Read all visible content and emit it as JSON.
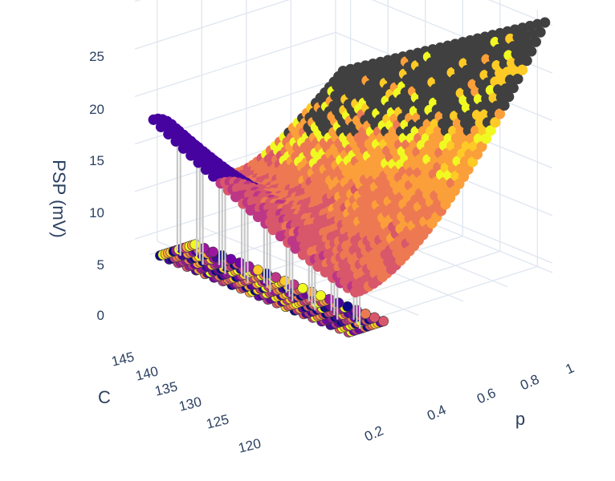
{
  "chart_data": {
    "type": "scatter3d",
    "title": "",
    "axes": {
      "x": {
        "label": "p",
        "range": [
          0.1,
          1.0
        ],
        "ticks": [
          "0.2",
          "0.4",
          "0.6",
          "0.8",
          "1"
        ]
      },
      "y": {
        "label": "C",
        "range": [
          118,
          147
        ],
        "ticks": [
          "120",
          "125",
          "130",
          "135",
          "140",
          "145"
        ]
      },
      "z": {
        "label": "PSP (mV)",
        "range": [
          -1,
          26
        ],
        "ticks": [
          "0",
          "5",
          "10",
          "15",
          "20",
          "25"
        ]
      }
    },
    "grid": true,
    "colorscale": "plasma",
    "colors": {
      "grid": "#dfe6ef",
      "stem": "#c8c8c8",
      "marker_outline": "#3a3a3a",
      "dark_band": "#404040",
      "palette": [
        "#0d0887",
        "#46039f",
        "#7201a8",
        "#9c179e",
        "#bd3786",
        "#d8576b",
        "#ed7953",
        "#fb9f3a",
        "#fdca26",
        "#f0f921"
      ]
    },
    "series": [
      {
        "kind": "surface_points",
        "description_values": {
          "p_min": 0.15,
          "p_max": 1.0,
          "C_min": 119,
          "C_max": 146,
          "psp_at_p_max_C_min": 25,
          "psp_peak_low_p_high_C": 12.5
        }
      },
      {
        "kind": "floor_points",
        "z": -1
      }
    ]
  }
}
